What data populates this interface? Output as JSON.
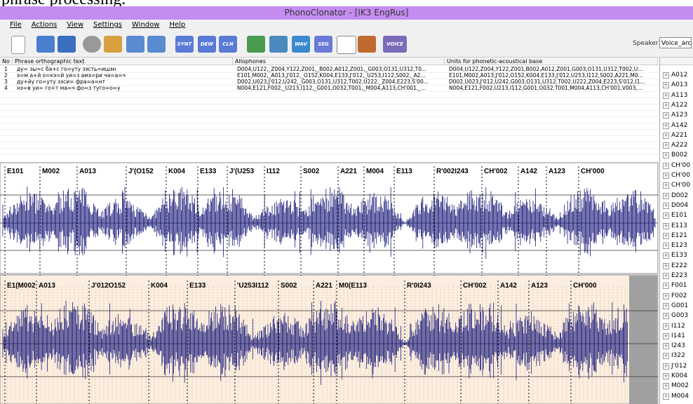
{
  "document_fragment": "phrase processing.",
  "window": {
    "title": "PhonoClonator - [IK3 EngRus]"
  },
  "menu": [
    "File",
    "Actions",
    "View",
    "Settings",
    "Window",
    "Help"
  ],
  "toolbar": {
    "buttons": [
      "SYNT",
      "DEW",
      "CLN",
      "WAV",
      "SEG",
      "VOICE"
    ],
    "speaker_label": "Speaker",
    "speaker_value": "Voice_arc"
  },
  "table": {
    "headers": [
      "No",
      "Phrase orthographic text",
      "Allophones",
      "Units for phonetic-acoustical base"
    ],
    "rows": [
      [
        "1",
        "ду= зы=с ба+с го=уту зэсть=ишэн",
        "D004,U122,_Z004,Y122,Z001,_B002,A012,Z001,_G003,O131,U312,T0...",
        "D004,U122,Z004,Y122,Z001,B002,A012,Z001,G003,O131,U312,T002,U..."
      ],
      [
        "2",
        "э=м а+й о=кэ=й уи=з амэ=ри ча=а=ч",
        "E101,M002,_A013,J'012,_O152,K004,E133,J'012,_U253,I112,S002,_A2...",
        "E101,M002,A013,J'012,O152,K004,E133,J'012,U253,I112,S002,A221,M0..."
      ],
      [
        "3",
        "ду+йу го=уту зэси= фра=а=нт",
        "D002,U023,J'012,U242,_G003,O131,U312,T002,U222,_Z004,E223,S'00...",
        "D002,U023,J'012,U242,G003,O131,U312,T002,U222,Z004,E223,S'012,I1..."
      ],
      [
        "4",
        "нэ=в уи= го+т ма=ч фо=з туго=о=у",
        "N004,E121,F002,_U213,I112,_G001,O032,T001,_M004,A113,CH'001,_...",
        "N004,E121,F002,U213,I112,G001,O032,T001,M004,A113,CH'001,V003,..."
      ]
    ]
  },
  "tree": [
    "A012",
    "A013",
    "A113",
    "A122",
    "A123",
    "A142",
    "A221",
    "A222",
    "B002",
    "CH'00",
    "CH'00",
    "CH'00",
    "D002",
    "D004",
    "E101",
    "E113",
    "E121",
    "E123",
    "E133",
    "E222",
    "E223",
    "F001",
    "F002",
    "G001",
    "G003",
    "I112",
    "I141",
    "I243",
    "I322",
    "J'012",
    "K004",
    "M002",
    "M004"
  ],
  "waveform_top": {
    "labels": [
      "E101",
      "M002",
      "A013",
      "J'(O152",
      "K004",
      "E133",
      "J'(U253",
      "I112",
      "S002",
      "A221",
      "M004",
      "E113",
      "R'002I243",
      "CH'002",
      "A142",
      "A123",
      "CH'000"
    ]
  },
  "waveform_bottom": {
    "labels": [
      "E1(M002",
      "A013",
      "J'012O152",
      "K004",
      "E133",
      "'U253I112",
      "S002",
      "A221",
      "M0(E113",
      "R'0I243",
      "CH'002",
      "A142",
      "A123",
      "CH'000"
    ]
  }
}
